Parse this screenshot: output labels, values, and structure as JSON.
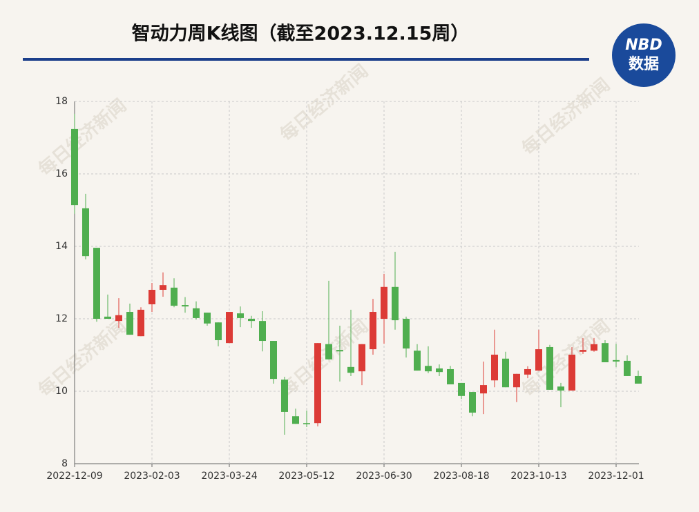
{
  "header": {
    "title": "智动力周K线图（截至2023.12.15周）",
    "logo_top": "NBD",
    "logo_bottom": "数据",
    "watermark": "每日经济新闻"
  },
  "chart_data": {
    "type": "candlestick",
    "categories": [
      "2022-12-09",
      null,
      null,
      null,
      null,
      null,
      null,
      "2023-02-03",
      null,
      null,
      null,
      null,
      null,
      null,
      "2023-03-24",
      null,
      null,
      null,
      null,
      null,
      null,
      "2023-05-12",
      null,
      null,
      null,
      null,
      null,
      null,
      "2023-06-30",
      null,
      null,
      null,
      null,
      null,
      null,
      "2023-08-18",
      null,
      null,
      null,
      null,
      null,
      null,
      "2023-10-13",
      null,
      null,
      null,
      null,
      null,
      null,
      "2023-12-01",
      null,
      null
    ],
    "open": [
      17.24,
      15.05,
      13.96,
      12.06,
      11.94,
      12.19,
      11.52,
      12.4,
      12.8,
      12.86,
      12.38,
      12.29,
      12.17,
      11.9,
      11.33,
      12.15,
      12.0,
      11.94,
      11.39,
      10.32,
      9.31,
      9.12,
      9.12,
      11.3,
      11.14,
      10.67,
      10.55,
      11.16,
      12.0,
      12.88,
      12.0,
      11.12,
      10.7,
      10.63,
      10.61,
      10.23,
      9.98,
      9.94,
      10.3,
      10.9,
      10.11,
      10.46,
      10.57,
      11.22,
      10.13,
      10.02,
      11.09,
      11.12,
      11.33,
      10.86,
      10.84,
      10.42
    ],
    "high": [
      17.66,
      15.45,
      13.96,
      12.67,
      12.57,
      12.42,
      12.32,
      12.99,
      13.28,
      13.12,
      12.6,
      12.48,
      12.17,
      11.9,
      12.19,
      12.34,
      12.08,
      12.21,
      11.39,
      10.4,
      9.52,
      9.47,
      11.33,
      13.05,
      11.81,
      12.25,
      11.3,
      12.55,
      13.24,
      13.85,
      12.06,
      11.3,
      11.24,
      10.74,
      10.7,
      10.23,
      9.98,
      10.82,
      11.7,
      11.09,
      10.48,
      10.69,
      11.7,
      11.28,
      10.23,
      11.22,
      11.47,
      11.47,
      11.41,
      11.31,
      10.99,
      10.57
    ],
    "low": [
      14.9,
      13.64,
      11.92,
      12.0,
      11.75,
      11.56,
      11.52,
      12.19,
      12.61,
      12.32,
      12.17,
      11.98,
      11.81,
      11.24,
      11.33,
      11.77,
      11.75,
      11.1,
      10.21,
      8.8,
      9.1,
      9.01,
      9.03,
      10.88,
      10.27,
      10.42,
      10.17,
      11.01,
      11.31,
      11.7,
      10.93,
      10.57,
      10.5,
      10.42,
      10.19,
      9.79,
      9.31,
      9.37,
      10.11,
      10.11,
      9.7,
      10.36,
      10.57,
      10.04,
      9.56,
      10.02,
      11.03,
      11.09,
      10.8,
      10.67,
      10.42,
      10.21
    ],
    "close": [
      15.14,
      13.73,
      12.0,
      12.0,
      12.1,
      11.56,
      12.25,
      12.8,
      12.93,
      12.36,
      12.34,
      12.02,
      11.87,
      11.41,
      12.19,
      12.02,
      11.94,
      11.39,
      10.34,
      9.43,
      9.1,
      9.09,
      11.33,
      10.88,
      11.1,
      10.51,
      11.3,
      12.19,
      12.88,
      11.96,
      11.18,
      10.57,
      10.55,
      10.53,
      10.19,
      9.87,
      9.41,
      10.17,
      11.01,
      10.11,
      10.48,
      10.61,
      11.16,
      10.04,
      10.02,
      11.01,
      11.14,
      11.3,
      10.8,
      10.82,
      10.42,
      10.21
    ],
    "up_color": "#dc3b36",
    "down_color": "#4fae4f",
    "ylim": [
      8,
      18
    ],
    "yticks": [
      8,
      10,
      12,
      14,
      16,
      18
    ],
    "grid": true
  }
}
